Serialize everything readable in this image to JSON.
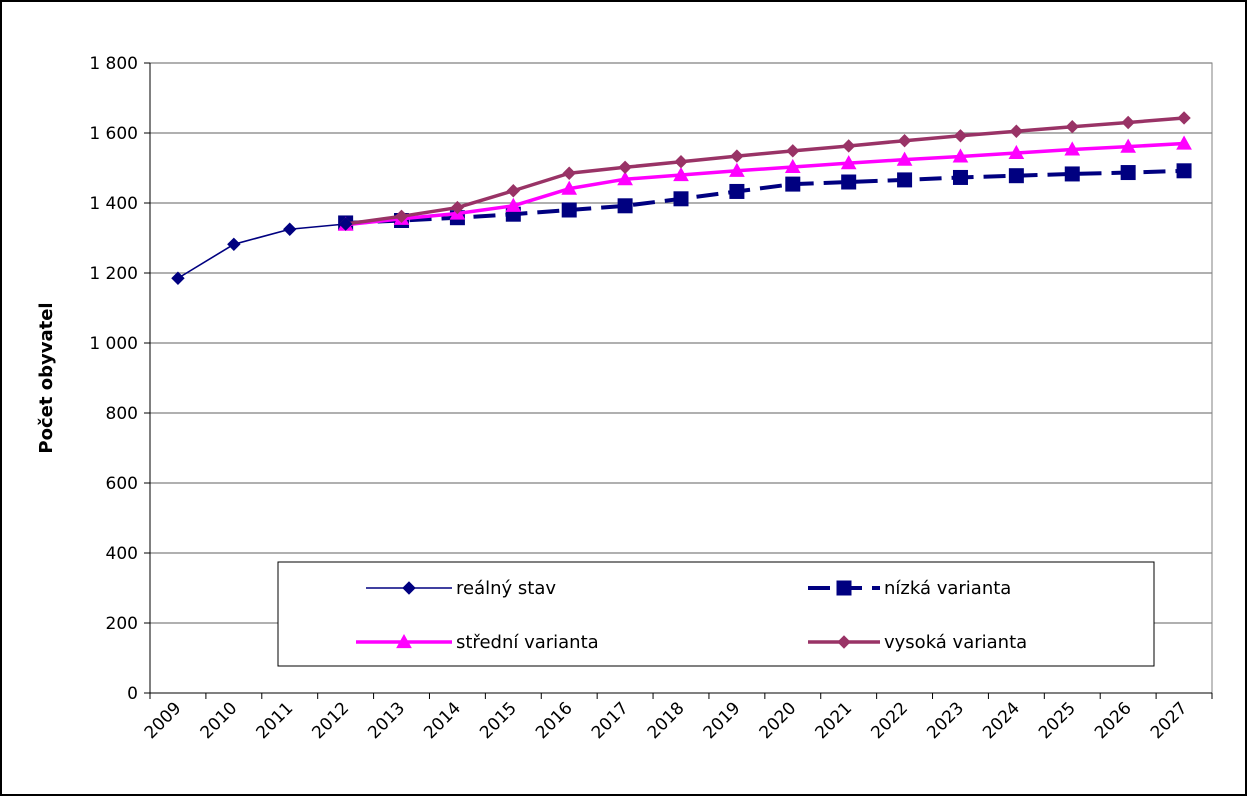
{
  "chart_data": {
    "type": "line",
    "title": "",
    "xlabel": "",
    "ylabel": "Počet obyvatel",
    "ylim": [
      0,
      1800
    ],
    "yticks": [
      0,
      200,
      400,
      600,
      800,
      1000,
      1200,
      1400,
      1600,
      1800
    ],
    "ytick_labels": [
      "0",
      "200",
      "400",
      "600",
      "800",
      "1 000",
      "1 200",
      "1 400",
      "1 600",
      "1 800"
    ],
    "categories": [
      "2009",
      "2010",
      "2011",
      "2012",
      "2013",
      "2014",
      "2015",
      "2016",
      "2017",
      "2018",
      "2019",
      "2020",
      "2021",
      "2022",
      "2023",
      "2024",
      "2025",
      "2026",
      "2027"
    ],
    "grid": "horizontal",
    "legend_position": "bottom-center inside plot",
    "series": [
      {
        "name": "reálný stav",
        "color": "#000080",
        "marker": "diamond",
        "line": "solid-thin",
        "values": [
          1185,
          1282,
          1325,
          1340,
          null,
          null,
          null,
          null,
          null,
          null,
          null,
          null,
          null,
          null,
          null,
          null,
          null,
          null,
          null
        ]
      },
      {
        "name": "nízká varianta",
        "color": "#000080",
        "marker": "square",
        "line": "dashed-thick",
        "values": [
          null,
          null,
          null,
          1343,
          1350,
          1358,
          1368,
          1380,
          1392,
          1412,
          1433,
          1454,
          1460,
          1466,
          1473,
          1478,
          1483,
          1487,
          1492
        ]
      },
      {
        "name": "střední varianta",
        "color": "#FF00FF",
        "marker": "triangle",
        "line": "solid-thick",
        "values": [
          null,
          null,
          null,
          1338,
          1355,
          1370,
          1392,
          1441,
          1468,
          1480,
          1492,
          1503,
          1514,
          1524,
          1533,
          1543,
          1553,
          1561,
          1570
        ]
      },
      {
        "name": "vysoká varianta",
        "color": "#993366",
        "marker": "diamond",
        "line": "solid-thick",
        "values": [
          null,
          null,
          null,
          1340,
          1362,
          1387,
          1435,
          1485,
          1502,
          1518,
          1534,
          1549,
          1563,
          1578,
          1592,
          1605,
          1618,
          1630,
          1643
        ]
      }
    ]
  }
}
